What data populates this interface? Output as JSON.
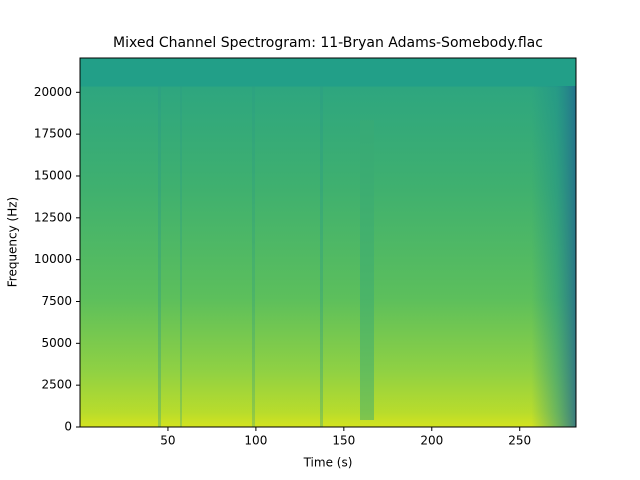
{
  "chart_data": {
    "type": "spectrogram",
    "title": "Mixed Channel Spectrogram: 11-Bryan Adams-Somebody.flac",
    "xlabel": "Time (s)",
    "ylabel": "Frequency (Hz)",
    "xlim": [
      0,
      282
    ],
    "xticks": [
      50,
      100,
      150,
      200,
      250
    ],
    "ylim": [
      0,
      22050
    ],
    "yticks": [
      0,
      2500,
      5000,
      7500,
      10000,
      12500,
      15000,
      17500,
      20000
    ],
    "colormap": "viridis"
  }
}
